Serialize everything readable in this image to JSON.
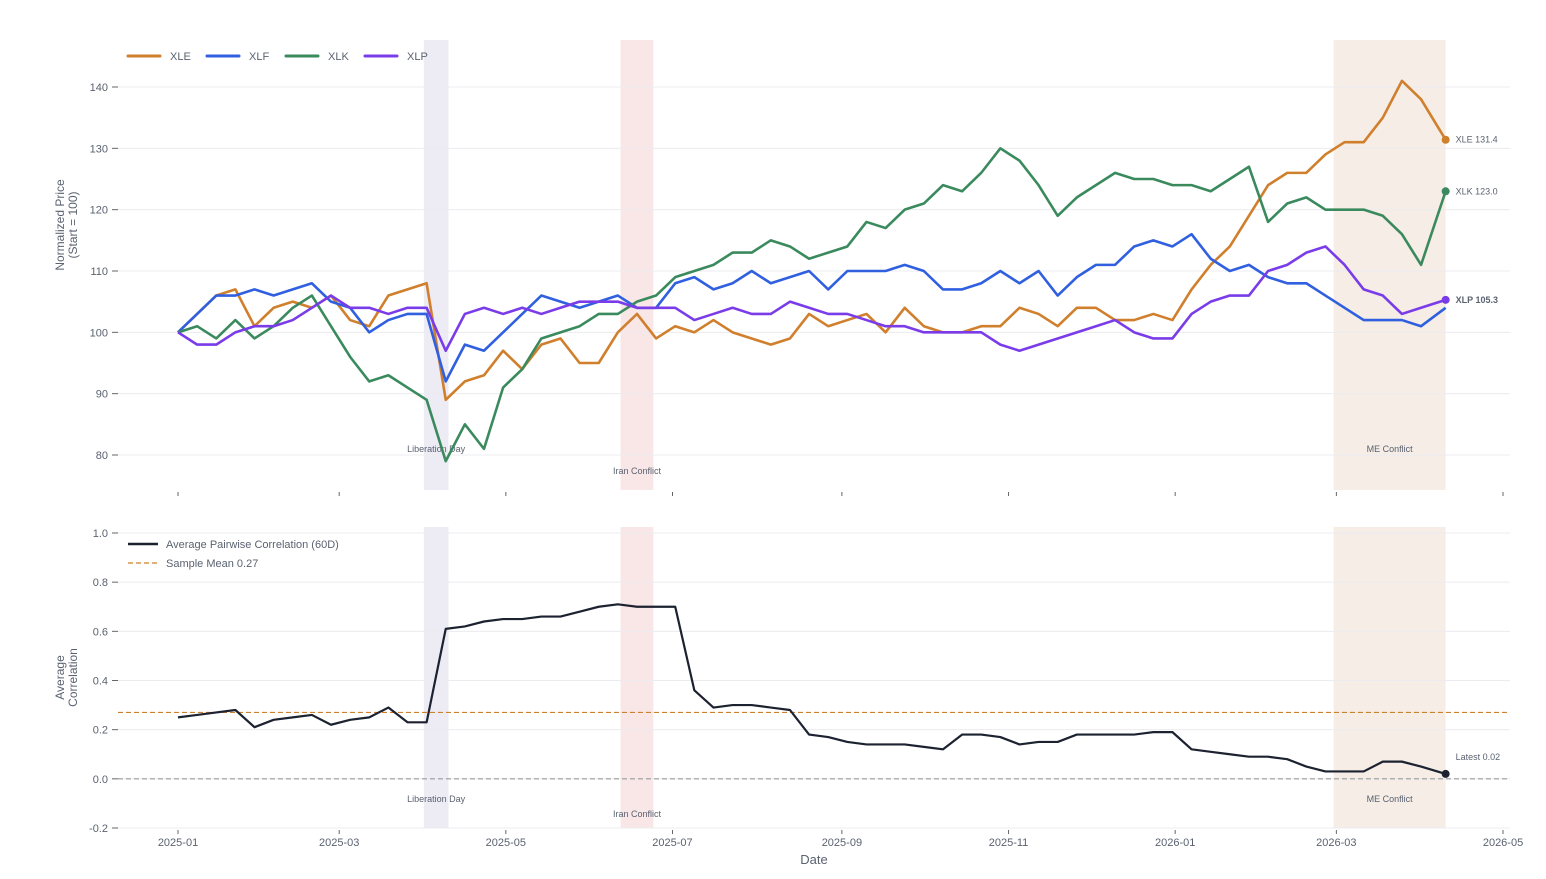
{
  "chart_data": [
    {
      "type": "line",
      "title": "",
      "xlabel": "",
      "ylabel": "Normalized Price (Start = 100)",
      "ylabel_lines": [
        "Normalized Price",
        "(Start = 100)"
      ],
      "ylim": [
        76,
        146
      ],
      "yticks": [
        80,
        90,
        100,
        110,
        120,
        130,
        140
      ],
      "x_start": "2025-01-01",
      "x_step_days": 7,
      "grid": true,
      "legend_position": "top-left",
      "series": [
        {
          "name": "XLE",
          "color": "#d07f2c",
          "end_label": "XLE 131.4",
          "values": [
            100,
            103,
            106,
            107,
            101,
            104,
            105,
            104,
            106,
            102,
            101,
            106,
            107,
            108,
            89,
            92,
            93,
            97,
            94,
            98,
            99,
            95,
            95,
            100,
            103,
            99,
            101,
            100,
            102,
            100,
            99,
            98,
            99,
            103,
            101,
            102,
            103,
            100,
            104,
            101,
            100,
            100,
            101,
            101,
            104,
            103,
            101,
            104,
            104,
            102,
            102,
            103,
            102,
            107,
            111,
            114,
            119,
            124,
            126,
            126,
            129,
            131,
            131,
            135,
            141,
            138,
            131.4
          ]
        },
        {
          "name": "XLF",
          "color": "#3060e0",
          "end_label": "",
          "values": [
            100,
            103,
            106,
            106,
            107,
            106,
            107,
            108,
            105,
            104,
            100,
            102,
            103,
            103,
            92,
            98,
            97,
            100,
            103,
            106,
            105,
            104,
            105,
            106,
            104,
            104,
            108,
            109,
            107,
            108,
            110,
            108,
            109,
            110,
            107,
            110,
            110,
            110,
            111,
            110,
            107,
            107,
            108,
            110,
            108,
            110,
            106,
            109,
            111,
            111,
            114,
            115,
            114,
            116,
            112,
            110,
            111,
            109,
            108,
            108,
            106,
            104,
            102,
            102,
            102,
            101,
            104
          ]
        },
        {
          "name": "XLK",
          "color": "#3a8a5e",
          "end_label": "XLK 123.0",
          "values": [
            100,
            101,
            99,
            102,
            99,
            101,
            104,
            106,
            101,
            96,
            92,
            93,
            91,
            89,
            79,
            85,
            81,
            91,
            94,
            99,
            100,
            101,
            103,
            103,
            105,
            106,
            109,
            110,
            111,
            113,
            113,
            115,
            114,
            112,
            113,
            114,
            118,
            117,
            120,
            121,
            124,
            123,
            126,
            130,
            128,
            124,
            119,
            122,
            124,
            126,
            125,
            125,
            124,
            124,
            123,
            125,
            127,
            118,
            121,
            122,
            120,
            120,
            120,
            119,
            116,
            111,
            123
          ]
        },
        {
          "name": "XLP",
          "color": "#7a3ce8",
          "end_label": "XLP 105.3",
          "values": [
            100,
            98,
            98,
            100,
            101,
            101,
            102,
            104,
            106,
            104,
            104,
            103,
            104,
            104,
            97,
            103,
            104,
            103,
            104,
            103,
            104,
            105,
            105,
            105,
            104,
            104,
            104,
            102,
            103,
            104,
            103,
            103,
            105,
            104,
            103,
            103,
            102,
            101,
            101,
            100,
            100,
            100,
            100,
            98,
            97,
            98,
            99,
            100,
            101,
            102,
            100,
            99,
            99,
            103,
            105,
            106,
            106,
            110,
            111,
            113,
            114,
            111,
            107,
            106,
            103,
            104,
            105.3
          ]
        }
      ],
      "events": [
        {
          "label": "Liberation Day",
          "start": "2025-04-01",
          "end": "2025-04-10",
          "color": "#e6e2f0"
        },
        {
          "label": "Iran Conflict",
          "start": "2025-06-12",
          "end": "2025-06-24",
          "color": "#f7dcdc"
        },
        {
          "label": "ME Conflict",
          "start": "2026-02-28",
          "end": "2026-04-10",
          "color": "#f1e6dc"
        }
      ]
    },
    {
      "type": "line",
      "title": "",
      "xlabel": "Date",
      "ylabel": "Average Correlation",
      "ylabel_lines": [
        "Average",
        "Correlation"
      ],
      "ylim": [
        -0.2,
        1.0
      ],
      "yticks": [
        -0.2,
        0.0,
        0.2,
        0.4,
        0.6,
        0.8,
        1.0
      ],
      "ytick_labels": [
        "-0.2",
        "0.0",
        "0.2",
        "0.4",
        "0.6",
        "0.8",
        "1.0"
      ],
      "xticks": [
        "2025-01",
        "2025-03",
        "2025-05",
        "2025-07",
        "2025-09",
        "2025-11",
        "2026-01",
        "2026-03",
        "2026-05"
      ],
      "x_start": "2025-01-01",
      "x_step_days": 7,
      "grid": true,
      "legend_position": "top-left",
      "series": [
        {
          "name": "Average Pairwise Correlation (60D)",
          "color": "#1c2230",
          "end_label": "Latest 0.02",
          "values": [
            0.25,
            0.26,
            0.27,
            0.28,
            0.21,
            0.24,
            0.25,
            0.26,
            0.22,
            0.24,
            0.25,
            0.29,
            0.23,
            0.23,
            0.61,
            0.62,
            0.64,
            0.65,
            0.65,
            0.66,
            0.66,
            0.68,
            0.7,
            0.71,
            0.7,
            0.7,
            0.7,
            0.36,
            0.29,
            0.3,
            0.3,
            0.29,
            0.28,
            0.18,
            0.17,
            0.15,
            0.14,
            0.14,
            0.14,
            0.13,
            0.12,
            0.18,
            0.18,
            0.17,
            0.14,
            0.15,
            0.15,
            0.18,
            0.18,
            0.18,
            0.18,
            0.19,
            0.19,
            0.12,
            0.11,
            0.1,
            0.09,
            0.09,
            0.08,
            0.05,
            0.03,
            0.03,
            0.03,
            0.07,
            0.07,
            0.05,
            0.02
          ]
        }
      ],
      "reference_lines": [
        {
          "name": "Sample Mean 0.27",
          "value": 0.27,
          "color": "#d07f2c",
          "style": "dashed"
        },
        {
          "name": "",
          "value": 0.0,
          "color": "#999999",
          "style": "dashed"
        }
      ]
    }
  ]
}
